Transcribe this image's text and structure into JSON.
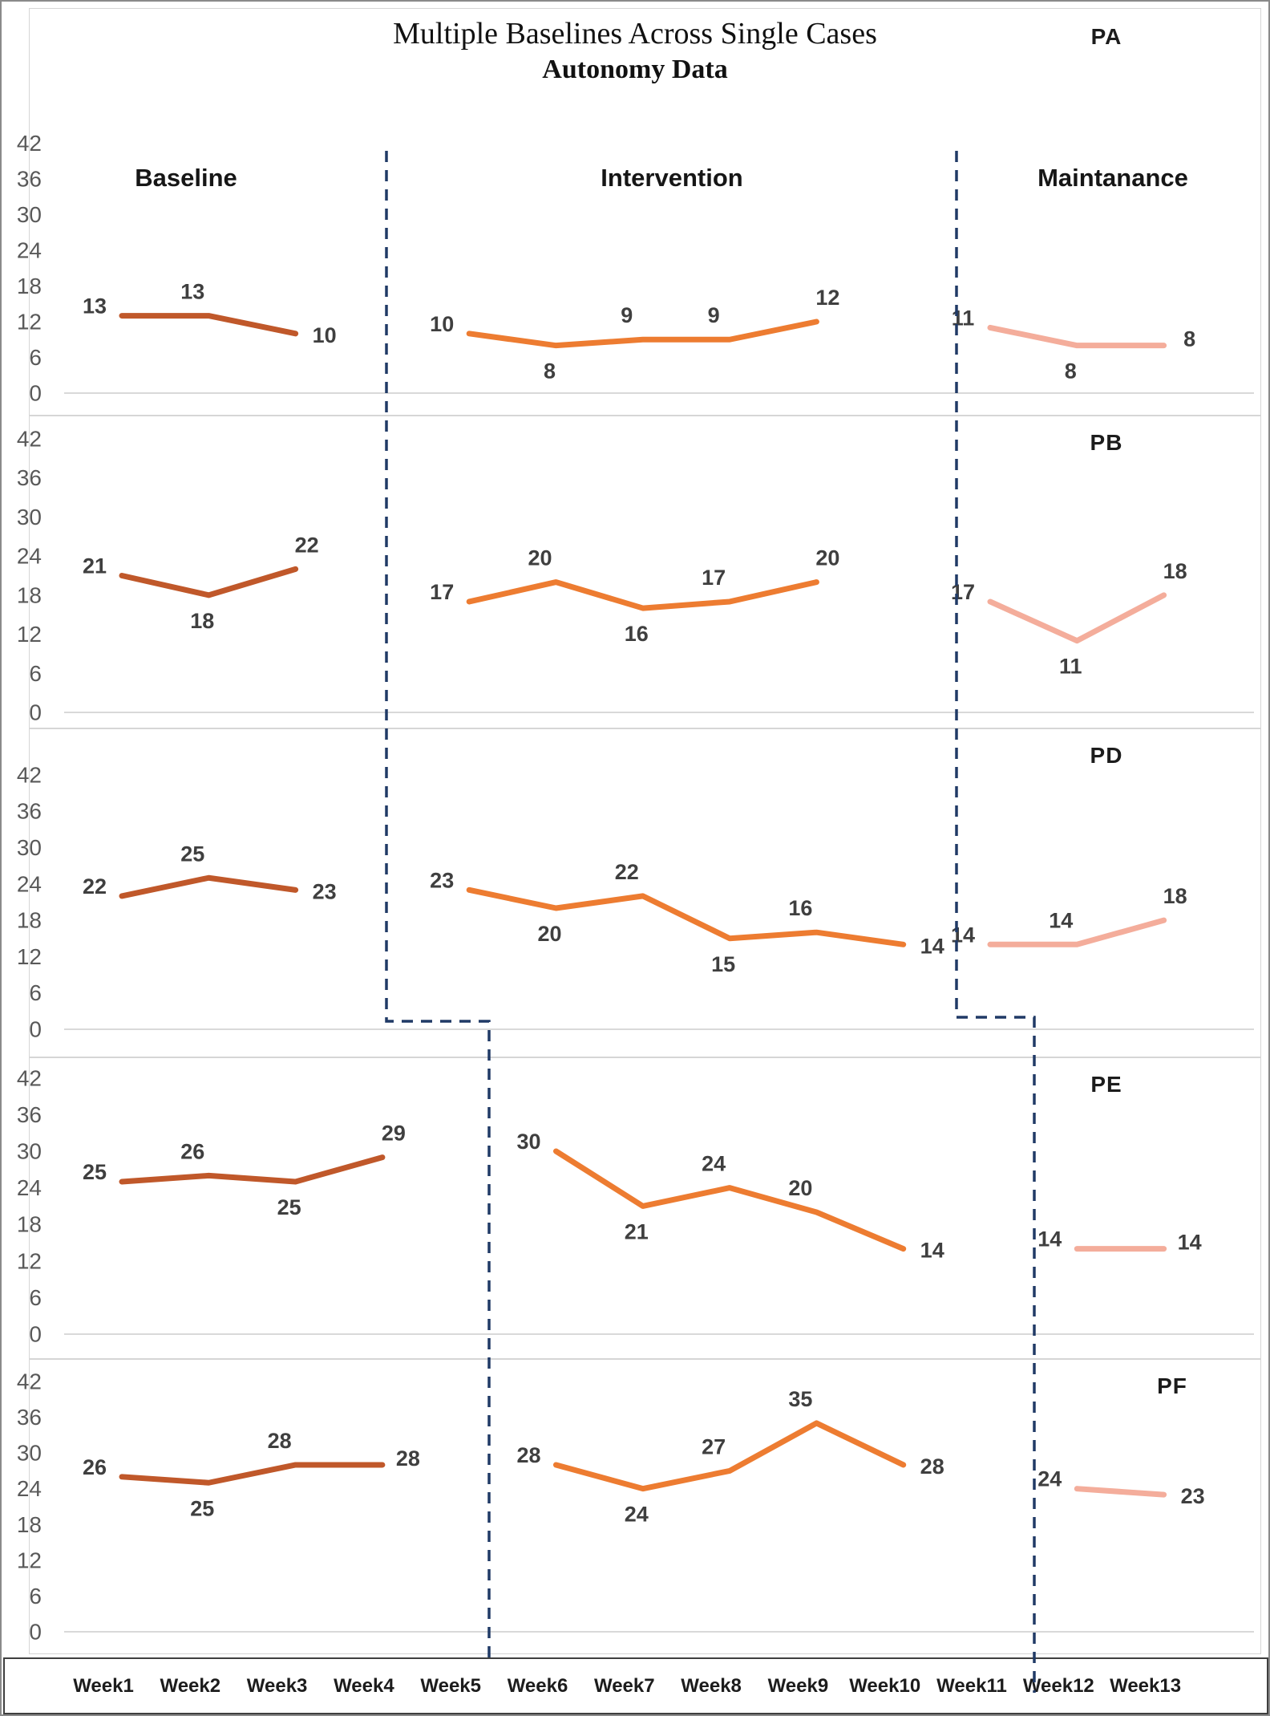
{
  "title": {
    "line1": "Multiple Baselines Across Single Cases",
    "line2": "Autonomy Data"
  },
  "phase_headers": [
    "Baseline",
    "Intervention",
    "Maintanance"
  ],
  "week_labels": [
    "Week1",
    "Week2",
    "Week3",
    "Week4",
    "Week5",
    "Week6",
    "Week7",
    "Week8",
    "Week9",
    "Week10",
    "Week11",
    "Week12",
    "Week13"
  ],
  "y_ticks": [
    42,
    36,
    30,
    24,
    18,
    12,
    6,
    0
  ],
  "colors": {
    "baseline_line": "#C0582A",
    "intervention_line": "#ED7C31",
    "maintenance_line": "#F4AD9B",
    "divider_dash": "#203A66",
    "gridline": "#D9D9D9",
    "tick_text": "#595959",
    "data_label_text": "#3F3F3F"
  },
  "chart_data": [
    {
      "type": "line",
      "panel": "PA",
      "ylim": [
        0,
        42
      ],
      "series": [
        {
          "name": "Baseline",
          "color_key": "baseline_line",
          "weeks": [
            1,
            2,
            3
          ],
          "values": [
            13,
            13,
            10
          ]
        },
        {
          "name": "Intervention",
          "color_key": "intervention_line",
          "weeks": [
            5,
            6,
            7,
            8,
            9
          ],
          "values": [
            10,
            8,
            9,
            9,
            12
          ]
        },
        {
          "name": "Maintanance",
          "color_key": "maintenance_line",
          "weeks": [
            11,
            12,
            13
          ],
          "values": [
            11,
            8,
            8
          ]
        }
      ]
    },
    {
      "type": "line",
      "panel": "PB",
      "ylim": [
        0,
        42
      ],
      "series": [
        {
          "name": "Baseline",
          "color_key": "baseline_line",
          "weeks": [
            1,
            2,
            3
          ],
          "values": [
            21,
            18,
            22
          ]
        },
        {
          "name": "Intervention",
          "color_key": "intervention_line",
          "weeks": [
            5,
            6,
            7,
            8,
            9
          ],
          "values": [
            17,
            20,
            16,
            17,
            20
          ]
        },
        {
          "name": "Maintanance",
          "color_key": "maintenance_line",
          "weeks": [
            11,
            12,
            13
          ],
          "values": [
            17,
            11,
            18
          ]
        }
      ]
    },
    {
      "type": "line",
      "panel": "PD",
      "ylim": [
        0,
        42
      ],
      "series": [
        {
          "name": "Baseline",
          "color_key": "baseline_line",
          "weeks": [
            1,
            2,
            3
          ],
          "values": [
            22,
            25,
            23
          ]
        },
        {
          "name": "Intervention",
          "color_key": "intervention_line",
          "weeks": [
            5,
            6,
            7,
            8,
            9,
            10
          ],
          "values": [
            23,
            20,
            22,
            15,
            16,
            14
          ]
        },
        {
          "name": "Maintanance",
          "color_key": "maintenance_line",
          "weeks": [
            11,
            12,
            13
          ],
          "values": [
            14,
            14,
            18
          ]
        }
      ]
    },
    {
      "type": "line",
      "panel": "PE",
      "ylim": [
        0,
        42
      ],
      "series": [
        {
          "name": "Baseline",
          "color_key": "baseline_line",
          "weeks": [
            1,
            2,
            3,
            4
          ],
          "values": [
            25,
            26,
            25,
            29
          ]
        },
        {
          "name": "Intervention",
          "color_key": "intervention_line",
          "weeks": [
            6,
            7,
            8,
            9,
            10
          ],
          "values": [
            30,
            21,
            24,
            20,
            14
          ]
        },
        {
          "name": "Maintanance",
          "color_key": "maintenance_line",
          "weeks": [
            12,
            13
          ],
          "values": [
            14,
            14
          ]
        }
      ]
    },
    {
      "type": "line",
      "panel": "PF",
      "ylim": [
        0,
        42
      ],
      "series": [
        {
          "name": "Baseline",
          "color_key": "baseline_line",
          "weeks": [
            1,
            2,
            3,
            4
          ],
          "values": [
            26,
            25,
            28,
            28
          ]
        },
        {
          "name": "Intervention",
          "color_key": "intervention_line",
          "weeks": [
            6,
            7,
            8,
            9,
            10
          ],
          "values": [
            28,
            24,
            27,
            35,
            28
          ]
        },
        {
          "name": "Maintanance",
          "color_key": "maintenance_line",
          "weeks": [
            12,
            13
          ],
          "values": [
            24,
            23
          ]
        }
      ]
    }
  ],
  "dividers": {
    "baseline_to_intervention": {
      "upper_panels_after_week": 4,
      "lower_panels_after_week": 5
    },
    "intervention_to_maintenance": {
      "upper_panels_after_week": 10,
      "lower_panels_after_week": 11
    }
  }
}
